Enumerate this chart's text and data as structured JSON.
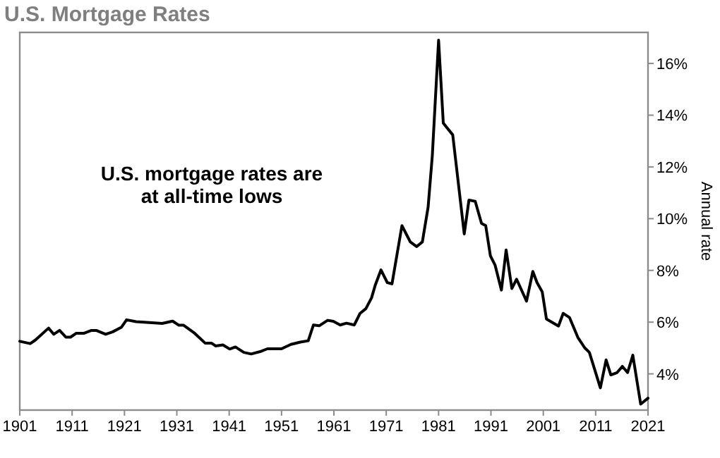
{
  "chart_data": {
    "type": "line",
    "title": "U.S. Mortgage Rates",
    "ylabel": "Annual rate",
    "annotations": [
      "U.S. mortgage rates are at all-time lows"
    ],
    "x": [
      1901,
      1903,
      1904,
      1906.5,
      1907.5,
      1908.6,
      1909.8,
      1910.7,
      1911.8,
      1913.3,
      1914.7,
      1915.6,
      1917.4,
      1918.7,
      1920.4,
      1921.4,
      1923.2,
      1928.2,
      1930.2,
      1931.4,
      1932.3,
      1934.4,
      1936.4,
      1937.6,
      1938.4,
      1939.8,
      1941.1,
      1942.2,
      1943.8,
      1945.2,
      1946.9,
      1948.3,
      1951,
      1952.8,
      1954.6,
      1956.1,
      1957.1,
      1958.2,
      1959.8,
      1960.9,
      1962.2,
      1963.4,
      1964.9,
      1966,
      1967.1,
      1968.2,
      1968.9,
      1970,
      1971.2,
      1972.1,
      1974,
      1975.6,
      1976.8,
      1977.9,
      1979,
      1979.8,
      1981,
      1981.9,
      1983.7,
      1985.9,
      1986.8,
      1988,
      1989.2,
      1990,
      1990.9,
      1991.8,
      1993,
      1993.9,
      1995,
      1995.9,
      1997.8,
      1999,
      1999.8,
      2000.8,
      2001.6,
      2003.9,
      2004.8,
      2006,
      2007.6,
      2008.9,
      2009.8,
      2011.9,
      2013,
      2013.9,
      2015.1,
      2016.1,
      2017.1,
      2018.1,
      2019.6,
      2021
    ],
    "series": [
      {
        "color": "#000000",
        "values": [
          5.26,
          5.17,
          5.31,
          5.77,
          5.53,
          5.68,
          5.42,
          5.42,
          5.57,
          5.57,
          5.68,
          5.68,
          5.53,
          5.62,
          5.8,
          6.09,
          6.02,
          5.95,
          6.04,
          5.88,
          5.88,
          5.57,
          5.19,
          5.19,
          5.08,
          5.12,
          4.96,
          5.04,
          4.83,
          4.77,
          4.86,
          4.97,
          4.97,
          5.14,
          5.23,
          5.28,
          5.89,
          5.86,
          6.07,
          6.03,
          5.89,
          5.96,
          5.89,
          6.34,
          6.52,
          6.94,
          7.43,
          8.02,
          7.53,
          7.48,
          9.73,
          9.1,
          8.92,
          9.1,
          10.45,
          12.43,
          16.9,
          13.69,
          13.24,
          9.41,
          10.72,
          10.67,
          9.82,
          9.73,
          8.56,
          8.2,
          7.24,
          8.79,
          7.3,
          7.66,
          6.81,
          7.96,
          7.53,
          7.17,
          6.12,
          5.85,
          6.34,
          6.18,
          5.41,
          5.01,
          4.83,
          3.46,
          4.54,
          3.96,
          4.05,
          4.29,
          4.05,
          4.72,
          2.83,
          3.06
        ]
      }
    ],
    "xlim": [
      1901,
      2021
    ],
    "xticks": [
      1901,
      1911,
      1921,
      1931,
      1941,
      1951,
      1961,
      1971,
      1981,
      1991,
      2001,
      2011,
      2021
    ],
    "ylim": [
      2.6,
      17.2
    ],
    "yticks": [
      {
        "value": 4,
        "label": "4%"
      },
      {
        "value": 6,
        "label": "6%"
      },
      {
        "value": 8,
        "label": "8%"
      },
      {
        "value": 10,
        "label": "10%"
      },
      {
        "value": 12,
        "label": "12%"
      },
      {
        "value": 14,
        "label": "14%"
      },
      {
        "value": 16,
        "label": "16%"
      }
    ],
    "grid": false,
    "line_style": "solid"
  }
}
